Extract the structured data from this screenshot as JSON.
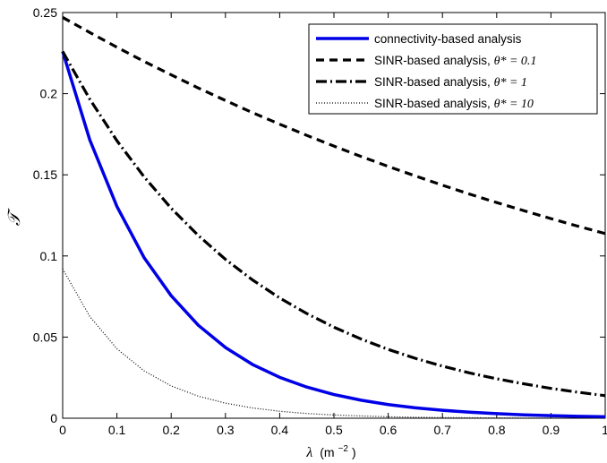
{
  "chart_data": {
    "type": "line",
    "xlabel_symbol": "λ",
    "xlabel_unit": "(m",
    "xlabel_exp": "−2",
    "xlabel_close": ")",
    "ylabel": "𝒯",
    "xlim": [
      0,
      1
    ],
    "ylim": [
      0,
      0.25
    ],
    "x_ticks": [
      0,
      0.1,
      0.2,
      0.3,
      0.4,
      0.5,
      0.6,
      0.7,
      0.8,
      0.9,
      1
    ],
    "x_tick_labels": [
      "0",
      "0.1",
      "0.2",
      "0.3",
      "0.4",
      "0.5",
      "0.6",
      "0.7",
      "0.8",
      "0.9",
      "1"
    ],
    "y_ticks": [
      0,
      0.05,
      0.1,
      0.15,
      0.2,
      0.25
    ],
    "y_tick_labels": [
      "0",
      "0.05",
      "0.1",
      "0.15",
      "0.2",
      "0.25"
    ],
    "grid": false,
    "legend_position": "top-right",
    "x": [
      0,
      0.05,
      0.1,
      0.15,
      0.2,
      0.25,
      0.3,
      0.35,
      0.4,
      0.45,
      0.5,
      0.55,
      0.6,
      0.65,
      0.7,
      0.75,
      0.8,
      0.85,
      0.9,
      0.95,
      1
    ],
    "series": [
      {
        "name": "connectivity-based analysis",
        "math": "",
        "color": "#0000e6",
        "style": "solid",
        "values": [
          0.226,
          0.1715,
          0.1305,
          0.099,
          0.0755,
          0.0573,
          0.0436,
          0.0331,
          0.0252,
          0.0192,
          0.0146,
          0.0111,
          0.0084,
          0.0064,
          0.0049,
          0.0037,
          0.0028,
          0.0021,
          0.0016,
          0.0012,
          0.0009
        ]
      },
      {
        "name": "SINR-based analysis, ",
        "math": "θ* = 0.1",
        "color": "#000000",
        "style": "dashed",
        "values": [
          0.247,
          0.2377,
          0.2286,
          0.2199,
          0.2116,
          0.2035,
          0.1958,
          0.1883,
          0.1812,
          0.1743,
          0.1677,
          0.1613,
          0.1552,
          0.1493,
          0.1436,
          0.1381,
          0.1329,
          0.1279,
          0.123,
          0.1183,
          0.1138
        ]
      },
      {
        "name": "SINR-based analysis, ",
        "math": "θ* = 1",
        "color": "#000000",
        "style": "dashdot",
        "values": [
          0.226,
          0.1966,
          0.171,
          0.1488,
          0.1294,
          0.1126,
          0.0979,
          0.0852,
          0.0741,
          0.0645,
          0.0561,
          0.0488,
          0.0424,
          0.0369,
          0.0321,
          0.0279,
          0.0243,
          0.0212,
          0.0184,
          0.016,
          0.0139
        ]
      },
      {
        "name": "SINR-based analysis, ",
        "math": "θ* = 10",
        "color": "#000000",
        "style": "dotted",
        "values": [
          0.092,
          0.0627,
          0.0428,
          0.0292,
          0.0199,
          0.0136,
          0.0093,
          0.0063,
          0.0043,
          0.0029,
          0.002,
          0.0014,
          0.0009,
          0.0006,
          0.0004,
          0.0003,
          0.0002,
          0.0001,
          0.0001,
          0.0001,
          0.0
        ]
      }
    ]
  }
}
